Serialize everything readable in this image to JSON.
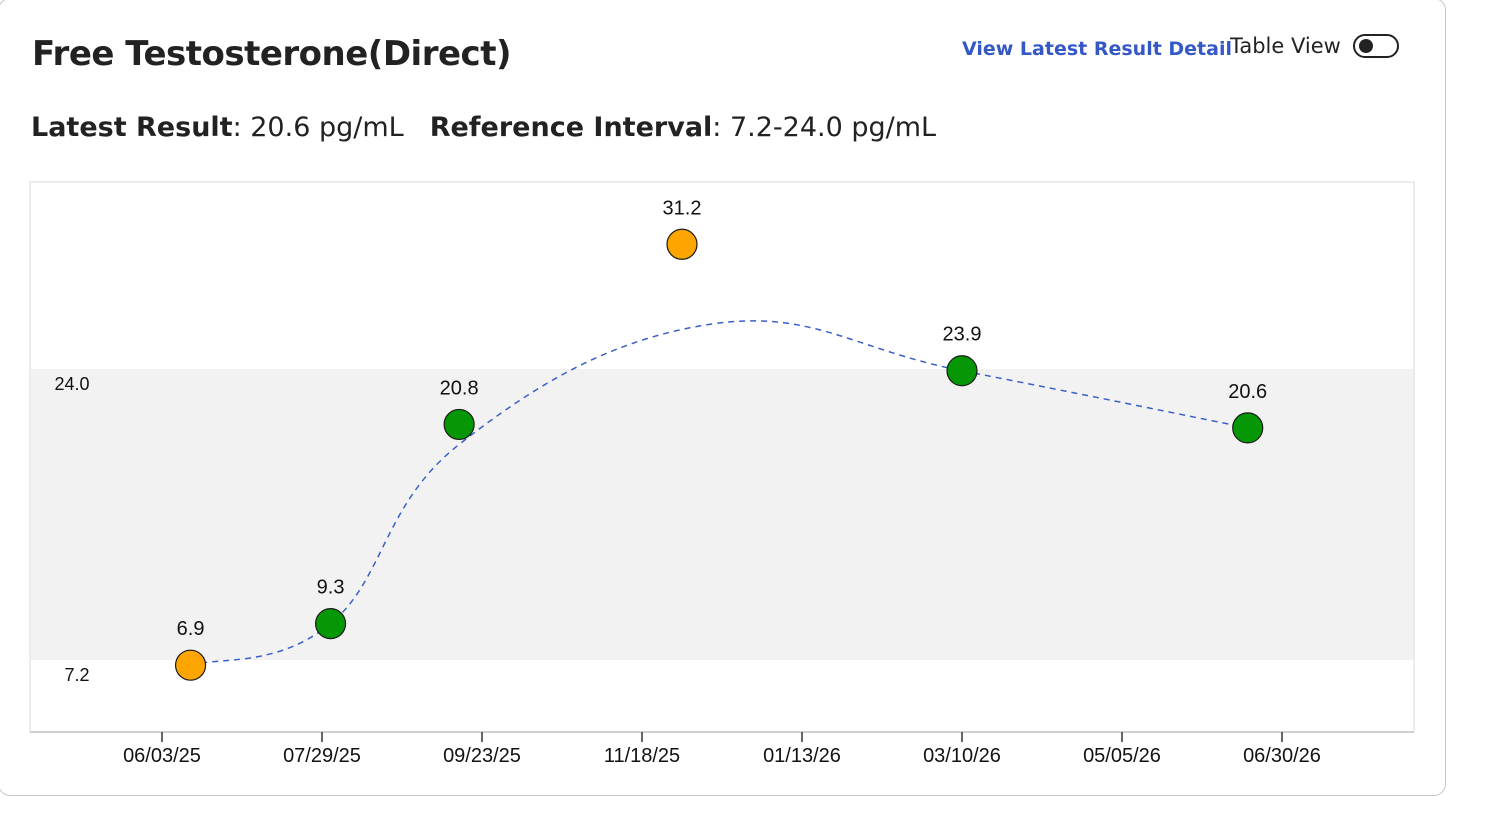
{
  "header": {
    "title": "Free Testosterone(Direct)",
    "view_latest_label": "View Latest Result Detail",
    "table_view_label": "Table View",
    "table_view_on": false
  },
  "summary": {
    "latest_label": "Latest Result",
    "latest_value": ": 20.6 pg/mL",
    "reference_label": "Reference Interval",
    "reference_value": ": 7.2-24.0 pg/mL"
  },
  "colors": {
    "in_range": "#069706",
    "out_of_range": "#ffa500",
    "trend_line": "#3a5fc8",
    "reference_band": "#f2f2f2"
  },
  "chart_data": {
    "type": "scatter",
    "title": "",
    "xlabel": "",
    "ylabel": "",
    "unit": "pg/mL",
    "reference_range": {
      "low": 7.2,
      "high": 24.0,
      "low_label": "7.2",
      "high_label": "24.0"
    },
    "x_ticks": [
      "06/03/25",
      "07/29/25",
      "09/23/25",
      "11/18/25",
      "01/13/26",
      "03/10/26",
      "05/05/26",
      "06/30/26"
    ],
    "points": [
      {
        "date": "2025-06-13",
        "value": 6.9,
        "label": "6.9",
        "status": "out_of_range"
      },
      {
        "date": "2025-08-01",
        "value": 9.3,
        "label": "9.3",
        "status": "in_range"
      },
      {
        "date": "2025-09-15",
        "value": 20.8,
        "label": "20.8",
        "status": "in_range"
      },
      {
        "date": "2025-12-02",
        "value": 31.2,
        "label": "31.2",
        "status": "out_of_range"
      },
      {
        "date": "2026-03-10",
        "value": 23.9,
        "label": "23.9",
        "status": "in_range"
      },
      {
        "date": "2026-06-18",
        "value": 20.6,
        "label": "20.6",
        "status": "in_range"
      }
    ],
    "trend_line": {
      "style": "dashed",
      "smooth": true
    },
    "grid": false
  }
}
